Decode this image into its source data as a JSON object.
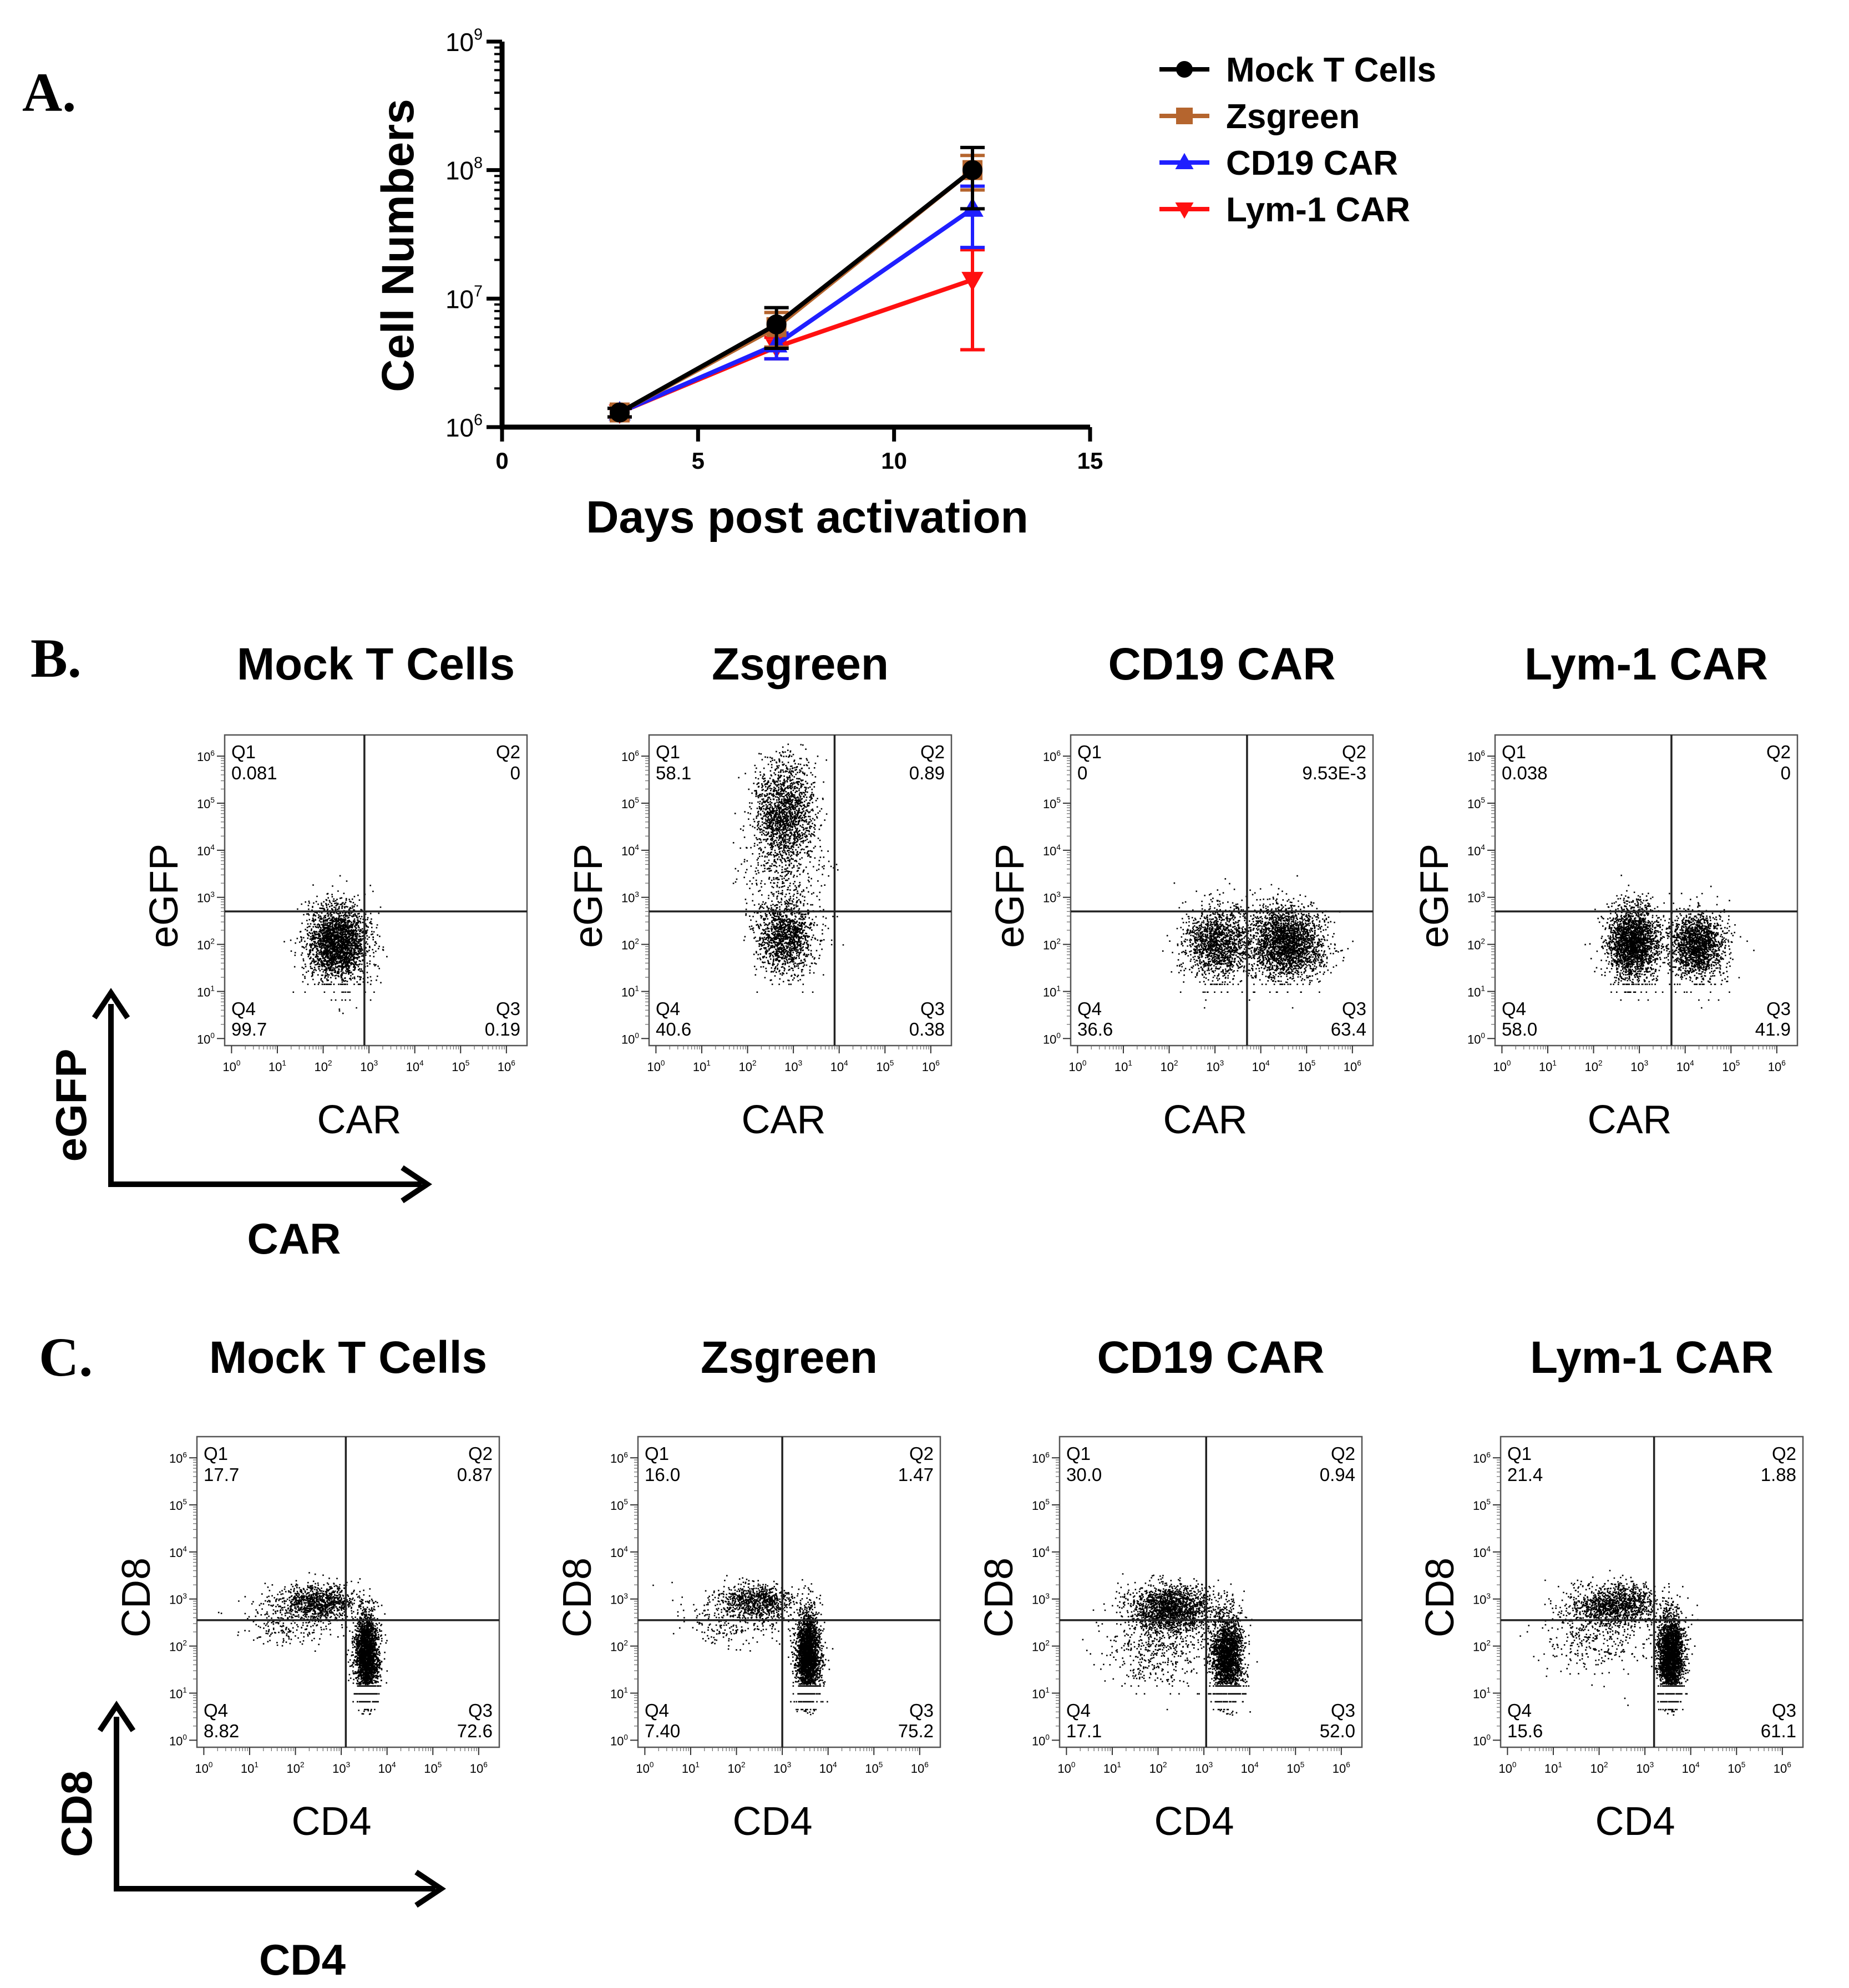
{
  "colors": {
    "mock": "#000000",
    "zsgreen": "#b5652e",
    "cd19": "#1f1fff",
    "lym1": "#ff1010",
    "axis": "#000000",
    "box": "#555555",
    "dots": "#000000"
  },
  "chart_data": [
    {
      "panel": "A.",
      "type": "line",
      "xlabel": "Days post activation",
      "ylabel": "Cell Numbers",
      "xlim": [
        0,
        15
      ],
      "xticks": [
        "0",
        "5",
        "10",
        "15"
      ],
      "yscale": "log",
      "ylim": [
        1000000,
        1000000000
      ],
      "yticks": [
        {
          "base": "10",
          "exp": "6"
        },
        {
          "base": "10",
          "exp": "7"
        },
        {
          "base": "10",
          "exp": "8"
        },
        {
          "base": "10",
          "exp": "9"
        }
      ],
      "legend": "top-right",
      "series": [
        {
          "name": "Mock T Cells",
          "color_key": "mock",
          "marker": "circle",
          "x": [
            3,
            7,
            12
          ],
          "y": [
            1300000,
            6300000,
            100000000
          ],
          "err": [
            100000,
            2200000,
            50000000
          ]
        },
        {
          "name": "Zsgreen",
          "color_key": "zsgreen",
          "marker": "square",
          "x": [
            3,
            7,
            12
          ],
          "y": [
            1300000,
            6000000,
            100000000
          ],
          "err": [
            100000,
            1800000,
            30000000
          ]
        },
        {
          "name": "CD19 CAR",
          "color_key": "cd19",
          "marker": "triangle-up",
          "x": [
            3,
            7,
            12
          ],
          "y": [
            1300000,
            4400000,
            50000000
          ],
          "err": [
            100000,
            1000000,
            25000000
          ]
        },
        {
          "name": "Lym-1 CAR",
          "color_key": "lym1",
          "marker": "triangle-down",
          "x": [
            3,
            7,
            12
          ],
          "y": [
            1300000,
            4200000,
            14000000
          ],
          "err": [
            100000,
            800000,
            10000000
          ]
        }
      ]
    },
    {
      "panel": "B.",
      "type": "scatter",
      "xlabel": "CAR",
      "ylabel": "eGFP",
      "axis_ticks": [
        "0",
        "1",
        "2",
        "3",
        "4",
        "5",
        "6"
      ],
      "tick_base": "10",
      "corner_x": "CAR",
      "corner_y": "eGFP",
      "plots": [
        {
          "title": "Mock T Cells",
          "q1": "0.081",
          "q2": "0",
          "q3": "0.19",
          "q4": "99.7",
          "gate_x": 2.9,
          "gate_y": 2.7,
          "clusters": [
            {
              "x": 2.3,
              "y": 2.05,
              "sx": 0.33,
              "sy": 0.4,
              "n": 2600,
              "floor": true
            }
          ]
        },
        {
          "title": "Zsgreen",
          "q1": "58.1",
          "q2": "0.89",
          "q3": "0.38",
          "q4": "40.6",
          "gate_x": 3.9,
          "gate_y": 2.7,
          "clusters": [
            {
              "x": 2.8,
              "y": 4.8,
              "sx": 0.33,
              "sy": 0.55,
              "n": 1700,
              "floor": false
            },
            {
              "x": 2.8,
              "y": 2.15,
              "sx": 0.33,
              "sy": 0.4,
              "n": 1300,
              "floor": true
            },
            {
              "x": 2.8,
              "y": 3.4,
              "sx": 0.5,
              "sy": 0.45,
              "n": 300,
              "floor": false
            }
          ]
        },
        {
          "title": "CD19 CAR",
          "q1": "0",
          "q2": "9.53E-3",
          "q3": "63.4",
          "q4": "36.6",
          "gate_x": 3.7,
          "gate_y": 2.7,
          "clusters": [
            {
              "x": 3.05,
              "y": 2.05,
              "sx": 0.35,
              "sy": 0.38,
              "n": 1500,
              "floor": true
            },
            {
              "x": 4.55,
              "y": 2.05,
              "sx": 0.4,
              "sy": 0.38,
              "n": 2500,
              "floor": true
            }
          ]
        },
        {
          "title": "Lym-1 CAR",
          "q1": "0.038",
          "q2": "0",
          "q3": "41.9",
          "q4": "58.0",
          "gate_x": 3.7,
          "gate_y": 2.7,
          "clusters": [
            {
              "x": 2.85,
              "y": 2.05,
              "sx": 0.28,
              "sy": 0.4,
              "n": 2300,
              "floor": true
            },
            {
              "x": 4.25,
              "y": 2.0,
              "sx": 0.3,
              "sy": 0.35,
              "n": 1700,
              "floor": true
            }
          ]
        }
      ]
    },
    {
      "panel": "C.",
      "type": "scatter",
      "xlabel": "CD4",
      "ylabel": "CD8",
      "axis_ticks": [
        "0",
        "1",
        "2",
        "3",
        "4",
        "5",
        "6"
      ],
      "tick_base": "10",
      "corner_x": "CD4",
      "corner_y": "CD8",
      "plots": [
        {
          "title": "Mock T Cells",
          "q1": "17.7",
          "q2": "0.87",
          "q3": "72.6",
          "q4": "8.82",
          "gate_x": 3.1,
          "gate_y": 2.55,
          "clusters": [
            {
              "x": 2.5,
              "y": 2.95,
              "sx": 0.4,
              "sy": 0.18,
              "n": 900,
              "floor": false
            },
            {
              "x": 3.55,
              "y": 1.8,
              "sx": 0.13,
              "sy": 0.45,
              "n": 2400,
              "floor": true
            },
            {
              "x": 1.9,
              "y": 2.6,
              "sx": 0.55,
              "sy": 0.3,
              "n": 300,
              "floor": false
            }
          ]
        },
        {
          "title": "Zsgreen",
          "q1": "16.0",
          "q2": "1.47",
          "q3": "75.2",
          "q4": "7.40",
          "gate_x": 3.0,
          "gate_y": 2.55,
          "clusters": [
            {
              "x": 2.45,
              "y": 2.95,
              "sx": 0.4,
              "sy": 0.18,
              "n": 800,
              "floor": false
            },
            {
              "x": 3.55,
              "y": 1.8,
              "sx": 0.13,
              "sy": 0.45,
              "n": 2500,
              "floor": true
            },
            {
              "x": 1.9,
              "y": 2.6,
              "sx": 0.55,
              "sy": 0.3,
              "n": 250,
              "floor": false
            }
          ]
        },
        {
          "title": "CD19 CAR",
          "q1": "30.0",
          "q2": "0.94",
          "q3": "52.0",
          "q4": "17.1",
          "gate_x": 3.05,
          "gate_y": 2.55,
          "clusters": [
            {
              "x": 2.3,
              "y": 2.8,
              "sx": 0.45,
              "sy": 0.25,
              "n": 1700,
              "floor": false
            },
            {
              "x": 3.5,
              "y": 1.8,
              "sx": 0.17,
              "sy": 0.45,
              "n": 2200,
              "floor": true
            },
            {
              "x": 2.0,
              "y": 2.0,
              "sx": 0.55,
              "sy": 0.45,
              "n": 500,
              "floor": true
            }
          ]
        },
        {
          "title": "Lym-1 CAR",
          "q1": "21.4",
          "q2": "1.88",
          "q3": "61.1",
          "q4": "15.6",
          "gate_x": 3.2,
          "gate_y": 2.55,
          "clusters": [
            {
              "x": 2.4,
              "y": 2.9,
              "sx": 0.45,
              "sy": 0.22,
              "n": 1200,
              "floor": false
            },
            {
              "x": 3.55,
              "y": 1.8,
              "sx": 0.14,
              "sy": 0.45,
              "n": 2300,
              "floor": true
            },
            {
              "x": 1.9,
              "y": 2.3,
              "sx": 0.55,
              "sy": 0.4,
              "n": 400,
              "floor": false
            }
          ]
        }
      ]
    }
  ]
}
